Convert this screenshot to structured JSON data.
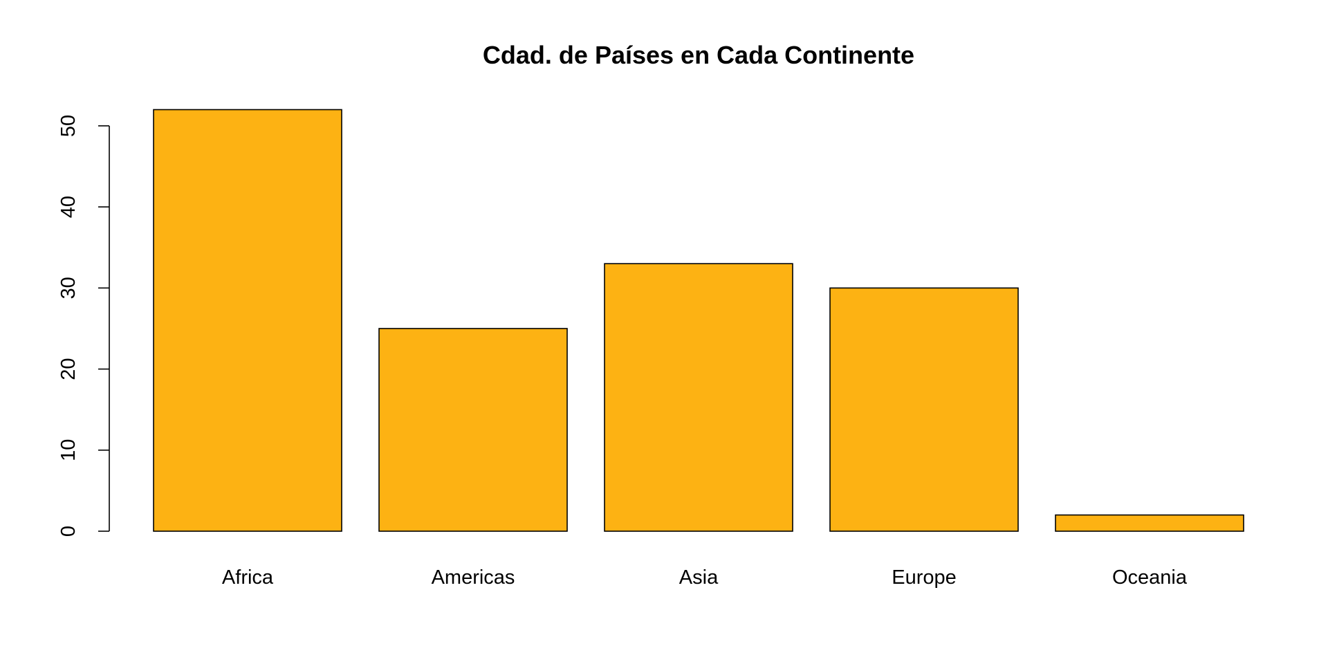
{
  "chart_data": {
    "type": "bar",
    "title": "Cdad. de Países en Cada Continente",
    "xlabel": "",
    "ylabel": "",
    "categories": [
      "Africa",
      "Americas",
      "Asia",
      "Europe",
      "Oceania"
    ],
    "values": [
      52,
      25,
      33,
      30,
      2
    ],
    "ylim": [
      0,
      52
    ],
    "yticks": [
      0,
      10,
      20,
      30,
      40,
      50
    ],
    "yticks_labels": [
      "0",
      "10",
      "20",
      "30",
      "40",
      "50"
    ],
    "bar_color": "#FDB213",
    "grid": false,
    "legend": "none"
  }
}
